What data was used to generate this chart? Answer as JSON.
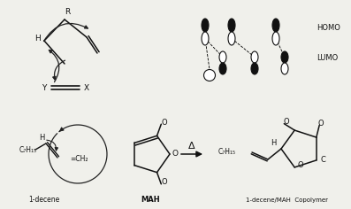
{
  "bg_color": "#f0f0eb",
  "line_color": "#111111",
  "text_color": "#111111",
  "arrow_color": "#222222",
  "labels": {
    "R": "R",
    "H_top": "H",
    "Y": "Y",
    "X": "X",
    "HOMO": "HOMO",
    "LUMO": "LUMO",
    "1decene": "1-decene",
    "MAH": "MAH",
    "copolymer": "1-decene/MAH  Copolymer",
    "C7H15_left": "C₇H₁₅",
    "C7H15_right": "C₇H₁₅",
    "CH2": "=CH₂",
    "delta": "Δ",
    "H_circle": "H",
    "H_prod": "H",
    "C_prod": "C"
  },
  "figsize": [
    3.97,
    2.36
  ],
  "dpi": 100
}
